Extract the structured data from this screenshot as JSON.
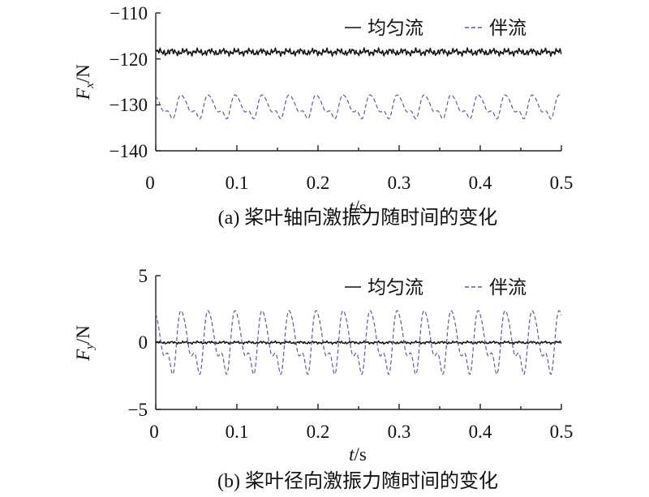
{
  "chart_data": [
    {
      "type": "line",
      "caption": "(a) 桨叶轴向激振力随时间的变化",
      "ylabel": {
        "var": "F",
        "sub": "x",
        "unit": "/N"
      },
      "xlabel": {
        "var": "t",
        "unit": "/s"
      },
      "xlim": [
        0,
        0.5
      ],
      "ylim": [
        -140,
        -110
      ],
      "xticks": [
        "0",
        "0.1",
        "0.2",
        "0.3",
        "0.4",
        "0.5"
      ],
      "yticks": [
        "−110",
        "−120",
        "−130",
        "−140"
      ],
      "ytick_values": [
        -110,
        -120,
        -130,
        -140
      ],
      "legend": {
        "position": "top-right"
      },
      "series": [
        {
          "name": "均匀流",
          "style": "solid",
          "color": "#111111",
          "mean": -118.5,
          "amplitude": 0.9,
          "period": 0.0333
        },
        {
          "name": "伴流",
          "style": "dashed",
          "color": "#5a5aa8",
          "mean": -131.3,
          "peak": -127.5,
          "trough": -133.5,
          "period": 0.0333
        }
      ]
    },
    {
      "type": "line",
      "caption": "(b) 桨叶径向激振力随时间的变化",
      "ylabel": {
        "var": "F",
        "sub": "y",
        "unit": "/N"
      },
      "xlabel": {
        "var": "t",
        "unit": "/s"
      },
      "xlim": [
        0,
        0.5
      ],
      "ylim": [
        -5,
        5
      ],
      "xticks": [
        "0",
        "0.1",
        "0.2",
        "0.3",
        "0.4",
        "0.5"
      ],
      "yticks": [
        "5",
        "0",
        "−5"
      ],
      "ytick_values": [
        5,
        0,
        -5
      ],
      "legend": {
        "position": "top-right"
      },
      "series": [
        {
          "name": "均匀流",
          "style": "solid",
          "color": "#111111",
          "mean": 0.0,
          "amplitude": 0.12,
          "period": 0.0333
        },
        {
          "name": "伴流",
          "style": "dashed",
          "color": "#5a5aa8",
          "mean": 0.0,
          "peak": 2.7,
          "trough": -2.8,
          "period": 0.0333
        }
      ]
    }
  ]
}
